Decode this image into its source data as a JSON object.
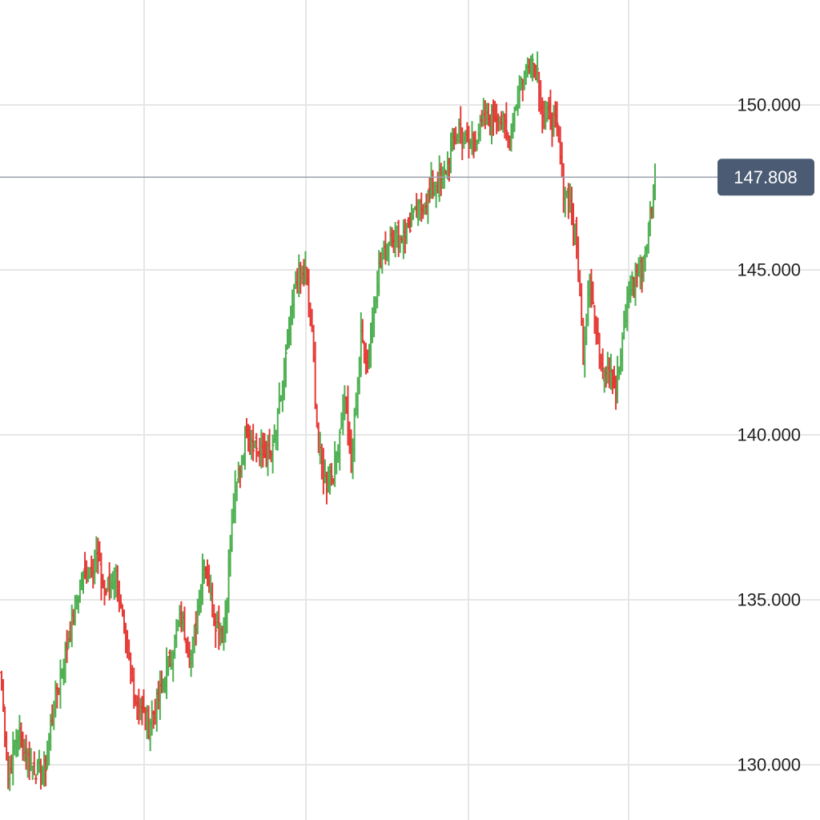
{
  "chart_data": {
    "type": "bar",
    "subtype": "ohlc",
    "y_ticks": [
      "150.000",
      "145.000",
      "140.000",
      "135.000",
      "130.000"
    ],
    "y_tick_values": [
      150,
      145,
      140,
      135,
      130
    ],
    "ylim": [
      128.2,
      152.9
    ],
    "grid": true,
    "current_price": {
      "value": 147.808,
      "label": "147.808"
    },
    "colors": {
      "up": "#4caf50",
      "down": "#e53935",
      "grid": "#e6e6e6",
      "price_line": "#9aa1ad",
      "price_tag_bg": "#4a5b73",
      "price_tag_text": "#ffffff"
    },
    "waypoints": [
      [
        0,
        132.5
      ],
      [
        4,
        129.6
      ],
      [
        10,
        131.0
      ],
      [
        18,
        130.0
      ],
      [
        26,
        129.7
      ],
      [
        32,
        131.8
      ],
      [
        40,
        133.6
      ],
      [
        48,
        135.5
      ],
      [
        58,
        136.3
      ],
      [
        63,
        135.2
      ],
      [
        70,
        135.8
      ],
      [
        76,
        133.6
      ],
      [
        82,
        132.0
      ],
      [
        90,
        131.2
      ],
      [
        96,
        132.0
      ],
      [
        102,
        133.0
      ],
      [
        110,
        134.5
      ],
      [
        116,
        133.2
      ],
      [
        124,
        136.3
      ],
      [
        130,
        134.5
      ],
      [
        136,
        134.0
      ],
      [
        142,
        137.8
      ],
      [
        150,
        140.3
      ],
      [
        158,
        139.4
      ],
      [
        166,
        139.4
      ],
      [
        172,
        141.5
      ],
      [
        180,
        144.6
      ],
      [
        186,
        144.9
      ],
      [
        190,
        143.0
      ],
      [
        194,
        139.5
      ],
      [
        198,
        138.6
      ],
      [
        204,
        139.0
      ],
      [
        210,
        141.3
      ],
      [
        214,
        139.0
      ],
      [
        220,
        143.0
      ],
      [
        224,
        142.2
      ],
      [
        230,
        144.8
      ],
      [
        238,
        146.2
      ],
      [
        244,
        146.0
      ],
      [
        252,
        146.5
      ],
      [
        258,
        147.0
      ],
      [
        264,
        147.5
      ],
      [
        270,
        147.7
      ],
      [
        276,
        148.8
      ],
      [
        280,
        149.3
      ],
      [
        286,
        148.8
      ],
      [
        292,
        149.2
      ],
      [
        298,
        149.6
      ],
      [
        304,
        149.8
      ],
      [
        310,
        149.0
      ],
      [
        316,
        150.3
      ],
      [
        320,
        150.9
      ],
      [
        324,
        151.5
      ],
      [
        328,
        151.0
      ],
      [
        332,
        149.4
      ],
      [
        336,
        149.7
      ],
      [
        340,
        149.2
      ],
      [
        344,
        147.5
      ],
      [
        348,
        147.1
      ],
      [
        352,
        145.7
      ],
      [
        356,
        142.5
      ],
      [
        360,
        145.0
      ],
      [
        364,
        143.0
      ],
      [
        368,
        142.0
      ],
      [
        372,
        142.2
      ],
      [
        374,
        142.0
      ],
      [
        376,
        141.4
      ],
      [
        380,
        142.7
      ],
      [
        384,
        144.4
      ],
      [
        388,
        144.8
      ],
      [
        392,
        145.1
      ],
      [
        396,
        146.2
      ],
      [
        400,
        147.808
      ]
    ]
  }
}
